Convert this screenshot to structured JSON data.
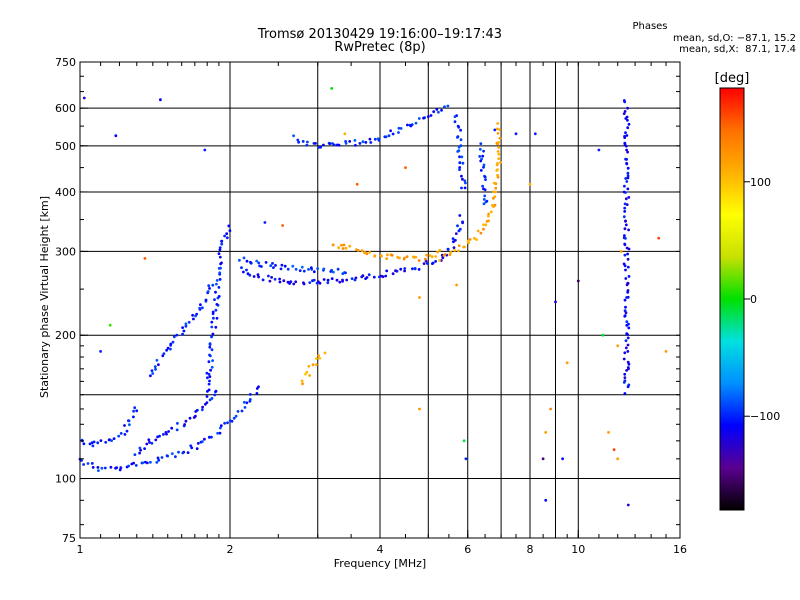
{
  "title_line1": "Tromsø 20130429 19:16:00–19:17:43",
  "title_line2": "RwPretec (8p)",
  "stats": {
    "heading": "Phases",
    "line_o": "mean, sd,O: −87.1, 15.2",
    "line_x": "mean, sd,X:  87.1, 17.4"
  },
  "colorbar": {
    "unit": "[deg]",
    "ticks": [
      {
        "value": 100,
        "label": "100"
      },
      {
        "value": 0,
        "label": "0"
      },
      {
        "value": -100,
        "label": "−100"
      }
    ],
    "range": [
      -180,
      180
    ],
    "stops": [
      "#000000",
      "#5a0090",
      "#0000ff",
      "#0090ff",
      "#00e0e0",
      "#00e000",
      "#c8e000",
      "#ffff00",
      "#ffb000",
      "#ff7000",
      "#ff0000"
    ]
  },
  "chart_data": {
    "type": "scatter",
    "title": "Tromsø 20130429 19:16:00–19:17:43",
    "subtitle": "RwPretec (8p)",
    "xlabel": "Frequency [MHz]",
    "ylabel": "Stationary phase Virtual Height [km]",
    "xscale": "log",
    "yscale": "log",
    "xlim": [
      1,
      16
    ],
    "ylim": [
      75,
      750
    ],
    "grid": true,
    "x_ticks": [
      {
        "value": 1,
        "label": "1"
      },
      {
        "value": 2,
        "label": "2"
      },
      {
        "value": 4,
        "label": "4"
      },
      {
        "value": 6,
        "label": "6"
      },
      {
        "value": 8,
        "label": "8"
      },
      {
        "value": 10,
        "label": "10"
      },
      {
        "value": 16,
        "label": "16"
      }
    ],
    "y_ticks": [
      {
        "value": 75,
        "label": "75"
      },
      {
        "value": 100,
        "label": "100"
      },
      {
        "value": 200,
        "label": "200"
      },
      {
        "value": 300,
        "label": "300"
      },
      {
        "value": 400,
        "label": "400"
      },
      {
        "value": 500,
        "label": "500"
      },
      {
        "value": 600,
        "label": "600"
      },
      {
        "value": 750,
        "label": "750"
      }
    ],
    "extra_x_gridlines": [
      3,
      5,
      7,
      9
    ],
    "extra_y_gridlines": [
      150
    ],
    "traces": [
      {
        "x": [
          1.0,
          1.04,
          1.1,
          1.2,
          1.3,
          1.45,
          1.6,
          1.75,
          1.9,
          2.0,
          2.1,
          2.2,
          2.3
        ],
        "y": [
          110,
          107,
          105,
          105,
          107,
          110,
          113,
          118,
          125,
          132,
          140,
          148,
          157
        ],
        "phase": -100
      },
      {
        "x": [
          1.0,
          1.05,
          1.12,
          1.2,
          1.25,
          1.3
        ],
        "y": [
          120,
          118,
          119,
          122,
          130,
          143
        ],
        "phase": -100
      },
      {
        "x": [
          1.3,
          1.35,
          1.45,
          1.6,
          1.8,
          1.9
        ],
        "y": [
          112,
          118,
          122,
          130,
          142,
          155
        ],
        "phase": -105
      },
      {
        "x": [
          1.8,
          1.82,
          1.85,
          1.88,
          1.9,
          1.92,
          1.95,
          2.0
        ],
        "y": [
          150,
          170,
          200,
          240,
          275,
          300,
          320,
          340
        ],
        "phase": -100
      },
      {
        "x": [
          1.38,
          1.45,
          1.55,
          1.65,
          1.75,
          1.85
        ],
        "y": [
          165,
          180,
          195,
          210,
          230,
          260
        ],
        "phase": -100
      },
      {
        "x": [
          2.1,
          2.3,
          2.5,
          2.7,
          2.9,
          3.1,
          3.4,
          3.7,
          4.0,
          4.4,
          4.8,
          5.2,
          5.5,
          5.7,
          5.85
        ],
        "y": [
          275,
          265,
          260,
          257,
          258,
          260,
          262,
          265,
          268,
          272,
          278,
          288,
          300,
          320,
          360
        ],
        "phase": -110
      },
      {
        "x": [
          2.1,
          2.3,
          2.6,
          2.9,
          3.2,
          3.5
        ],
        "y": [
          290,
          282,
          278,
          275,
          273,
          272
        ],
        "phase": -95
      },
      {
        "x": [
          3.2,
          3.5,
          3.8,
          4.1,
          4.4,
          4.7,
          5.0,
          5.3
        ],
        "y": [
          310,
          305,
          298,
          293,
          290,
          289,
          292,
          300
        ],
        "phase": 120
      },
      {
        "x": [
          5.3,
          5.5,
          5.8,
          6.2,
          6.6,
          6.8,
          6.9,
          6.95
        ],
        "y": [
          290,
          295,
          305,
          320,
          345,
          390,
          460,
          560
        ],
        "phase": 115
      },
      {
        "x": [
          2.7,
          2.8,
          3.0,
          3.3,
          3.6,
          4.0,
          4.4,
          4.8,
          5.2,
          5.5
        ],
        "y": [
          520,
          505,
          500,
          502,
          508,
          520,
          540,
          565,
          590,
          610
        ],
        "phase": -100
      },
      {
        "x": [
          5.7,
          5.72,
          5.75,
          5.8,
          5.85,
          5.9
        ],
        "y": [
          580,
          560,
          520,
          470,
          430,
          400
        ],
        "phase": -100
      },
      {
        "x": [
          6.4,
          6.42,
          6.45,
          6.5,
          6.55
        ],
        "y": [
          500,
          460,
          420,
          390,
          370
        ],
        "phase": -100
      },
      {
        "x": [
          12.5,
          12.5,
          12.5,
          12.5,
          12.5,
          12.5,
          12.5,
          12.5
        ],
        "y": [
          620,
          560,
          480,
          400,
          300,
          200,
          170,
          150
        ],
        "phase": -110
      },
      {
        "x": [
          2.8,
          2.95,
          3.1
        ],
        "y": [
          160,
          175,
          185
        ],
        "phase": 110
      }
    ],
    "points": [
      {
        "x": 1.02,
        "y": 630,
        "phase": -120
      },
      {
        "x": 1.18,
        "y": 525,
        "phase": -110
      },
      {
        "x": 1.45,
        "y": 625,
        "phase": -110
      },
      {
        "x": 1.78,
        "y": 490,
        "phase": -100
      },
      {
        "x": 1.15,
        "y": 210,
        "phase": 10
      },
      {
        "x": 1.1,
        "y": 185,
        "phase": -100
      },
      {
        "x": 1.35,
        "y": 290,
        "phase": 150
      },
      {
        "x": 2.35,
        "y": 345,
        "phase": -100
      },
      {
        "x": 2.55,
        "y": 340,
        "phase": 150
      },
      {
        "x": 3.2,
        "y": 660,
        "phase": 0
      },
      {
        "x": 3.4,
        "y": 530,
        "phase": 110
      },
      {
        "x": 3.6,
        "y": 415,
        "phase": 150
      },
      {
        "x": 4.5,
        "y": 450,
        "phase": 150
      },
      {
        "x": 4.8,
        "y": 240,
        "phase": 120
      },
      {
        "x": 4.8,
        "y": 140,
        "phase": 120
      },
      {
        "x": 5.7,
        "y": 255,
        "phase": 120
      },
      {
        "x": 5.9,
        "y": 120,
        "phase": -10
      },
      {
        "x": 5.95,
        "y": 110,
        "phase": -100
      },
      {
        "x": 6.8,
        "y": 540,
        "phase": -100
      },
      {
        "x": 7.5,
        "y": 530,
        "phase": -100
      },
      {
        "x": 8.0,
        "y": 415,
        "phase": 110
      },
      {
        "x": 8.2,
        "y": 530,
        "phase": -100
      },
      {
        "x": 8.5,
        "y": 110,
        "phase": -150
      },
      {
        "x": 8.6,
        "y": 90,
        "phase": -110
      },
      {
        "x": 8.6,
        "y": 125,
        "phase": 120
      },
      {
        "x": 8.8,
        "y": 140,
        "phase": 130
      },
      {
        "x": 9.0,
        "y": 235,
        "phase": -120
      },
      {
        "x": 9.3,
        "y": 110,
        "phase": -110
      },
      {
        "x": 9.5,
        "y": 175,
        "phase": 120
      },
      {
        "x": 10.0,
        "y": 260,
        "phase": -160
      },
      {
        "x": 11.0,
        "y": 490,
        "phase": -100
      },
      {
        "x": 11.2,
        "y": 200,
        "phase": -10
      },
      {
        "x": 11.5,
        "y": 125,
        "phase": 120
      },
      {
        "x": 11.8,
        "y": 115,
        "phase": 160
      },
      {
        "x": 12.0,
        "y": 110,
        "phase": 120
      },
      {
        "x": 12.2,
        "y": 300,
        "phase": 120
      },
      {
        "x": 12.0,
        "y": 190,
        "phase": 120
      },
      {
        "x": 14.5,
        "y": 320,
        "phase": 160
      },
      {
        "x": 15.0,
        "y": 185,
        "phase": 120
      },
      {
        "x": 12.6,
        "y": 88,
        "phase": -120
      }
    ]
  }
}
